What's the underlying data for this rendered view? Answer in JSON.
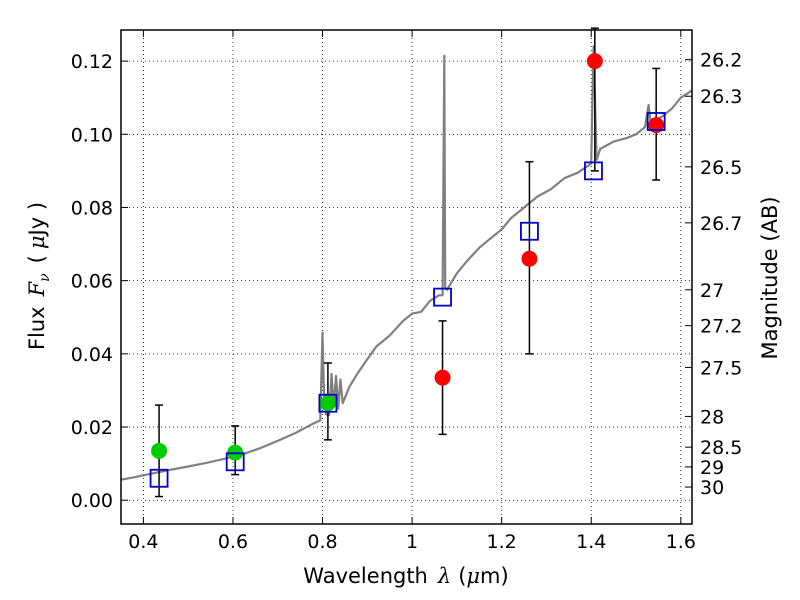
{
  "chart_data": {
    "type": "scatter",
    "title": "",
    "xlabel_parts": {
      "prefix": "Wavelength",
      "symbol": "λ",
      "unit_open": "(",
      "unit_mu": "μ",
      "unit_rest": "m)"
    },
    "ylabel_parts": {
      "prefix": "Flux",
      "symbol": "F",
      "subscript": "ν",
      "unit_open": "(",
      "unit_mu": "μ",
      "unit_rest": "Jy )"
    },
    "y2label": "Magnitude (AB)",
    "xlim": [
      0.35,
      1.625
    ],
    "ylim": [
      -0.0065,
      0.1285
    ],
    "x_ticks": [
      0.4,
      0.6,
      0.8,
      1.0,
      1.2,
      1.4,
      1.6
    ],
    "x_tick_labels": [
      "0.4",
      "0.6",
      "0.8",
      "1",
      "1.2",
      "1.4",
      "1.6"
    ],
    "y_ticks": [
      0.0,
      0.02,
      0.04,
      0.06,
      0.08,
      0.1,
      0.12
    ],
    "y_tick_labels": [
      "0.00",
      "0.02",
      "0.04",
      "0.06",
      "0.08",
      "0.10",
      "0.12"
    ],
    "mag_ticks": [
      {
        "flux": 0.1204,
        "label": "26.2"
      },
      {
        "flux": 0.1104,
        "label": "26.3"
      },
      {
        "flux": 0.0911,
        "label": "26.5"
      },
      {
        "flux": 0.0758,
        "label": "26.7"
      },
      {
        "flux": 0.0575,
        "label": "27"
      },
      {
        "flux": 0.0477,
        "label": "27.2"
      },
      {
        "flux": 0.0363,
        "label": "27.5"
      },
      {
        "flux": 0.0229,
        "label": "28"
      },
      {
        "flux": 0.0145,
        "label": "28.5"
      },
      {
        "flux": 0.0091,
        "label": "29"
      },
      {
        "flux": 0.0036,
        "label": "30"
      }
    ],
    "grid": true,
    "series": [
      {
        "name": "model spectrum",
        "kind": "line",
        "color": "#808080",
        "x": [
          0.35,
          0.38,
          0.42,
          0.46,
          0.5,
          0.54,
          0.58,
          0.62,
          0.66,
          0.7,
          0.74,
          0.78,
          0.795,
          0.8,
          0.803,
          0.807,
          0.815,
          0.82,
          0.825,
          0.83,
          0.835,
          0.84,
          0.845,
          0.85,
          0.86,
          0.88,
          0.9,
          0.92,
          0.95,
          0.98,
          1.0,
          1.02,
          1.04,
          1.06,
          1.068,
          1.072,
          1.074,
          1.078,
          1.085,
          1.1,
          1.12,
          1.15,
          1.18,
          1.2,
          1.22,
          1.25,
          1.28,
          1.31,
          1.34,
          1.37,
          1.4,
          1.405,
          1.408,
          1.412,
          1.42,
          1.45,
          1.48,
          1.5,
          1.52,
          1.528,
          1.535,
          1.545,
          1.56,
          1.58,
          1.6,
          1.625
        ],
        "y": [
          0.0056,
          0.0063,
          0.0073,
          0.0083,
          0.0092,
          0.0102,
          0.0113,
          0.0125,
          0.0142,
          0.0162,
          0.0184,
          0.021,
          0.0218,
          0.0458,
          0.03,
          0.0235,
          0.0233,
          0.0345,
          0.0255,
          0.034,
          0.025,
          0.033,
          0.0265,
          0.028,
          0.031,
          0.035,
          0.0385,
          0.042,
          0.045,
          0.049,
          0.051,
          0.0515,
          0.0545,
          0.056,
          0.056,
          0.1215,
          0.058,
          0.0575,
          0.059,
          0.062,
          0.065,
          0.069,
          0.072,
          0.074,
          0.077,
          0.08,
          0.083,
          0.085,
          0.088,
          0.0895,
          0.092,
          0.124,
          0.112,
          0.093,
          0.096,
          0.098,
          0.099,
          0.1,
          0.102,
          0.108,
          0.101,
          0.104,
          0.105,
          0.107,
          0.11,
          0.112
        ]
      },
      {
        "name": "model photometry",
        "kind": "open-square",
        "color": "#0000cc",
        "x": [
          0.435,
          0.605,
          0.812,
          1.068,
          1.262,
          1.405,
          1.545
        ],
        "y": [
          0.006,
          0.0105,
          0.0265,
          0.0555,
          0.0735,
          0.09,
          0.1035
        ]
      },
      {
        "name": "observed (green)",
        "kind": "filled-circle",
        "color": "#00cc00",
        "x": [
          0.435,
          0.605,
          0.812
        ],
        "y": [
          0.0135,
          0.013,
          0.0265
        ],
        "err_low": [
          0.001,
          0.007,
          0.0165
        ],
        "err_high": [
          0.026,
          0.0203,
          0.0375
        ]
      },
      {
        "name": "observed (red)",
        "kind": "filled-circle",
        "color": "#ff0000",
        "x": [
          1.068,
          1.262,
          1.408,
          1.545
        ],
        "y": [
          0.0335,
          0.066,
          0.12,
          0.1025
        ],
        "err_low": [
          0.018,
          0.04,
          0.09,
          0.0875
        ],
        "err_high": [
          0.049,
          0.0925,
          0.129,
          0.118
        ]
      }
    ]
  }
}
